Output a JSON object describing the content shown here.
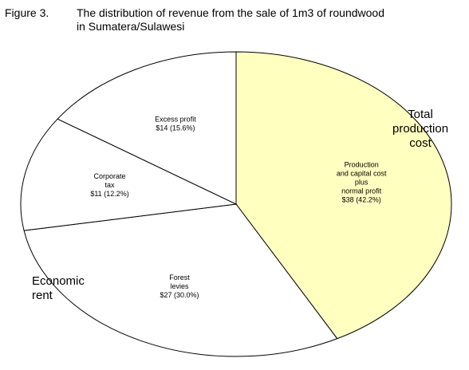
{
  "figure": {
    "label": "Figure 3.",
    "title_line1": "The distribution of revenue from the sale of 1m3 of roundwood",
    "title_line2": "in Sumatera/Sulawesi"
  },
  "outer_labels": {
    "total_production_cost": [
      "Total",
      "production",
      "cost"
    ],
    "economic_rent": [
      "Economic",
      "rent"
    ]
  },
  "chart_data": {
    "type": "pie",
    "title": "The distribution of revenue from the sale of 1m3 of roundwood in Sumatera/Sulawesi",
    "slices": [
      {
        "label_lines": [
          "Production",
          "and capital cost",
          "plus",
          "normal profit",
          "$38 (42.2%)"
        ],
        "value": 38,
        "percent": 42.2,
        "color": "#ffffc0"
      },
      {
        "label_lines": [
          "Forest",
          "levies",
          "$27 (30.0%)"
        ],
        "value": 27,
        "percent": 30.0,
        "color": "#ffffff"
      },
      {
        "label_lines": [
          "Corporate",
          "tax",
          "$11 (12.2%)"
        ],
        "value": 11,
        "percent": 12.2,
        "color": "#ffffff"
      },
      {
        "label_lines": [
          "Excess profit",
          "$14 (15.6%)"
        ],
        "value": 14,
        "percent": 15.6,
        "color": "#ffffff"
      }
    ]
  }
}
